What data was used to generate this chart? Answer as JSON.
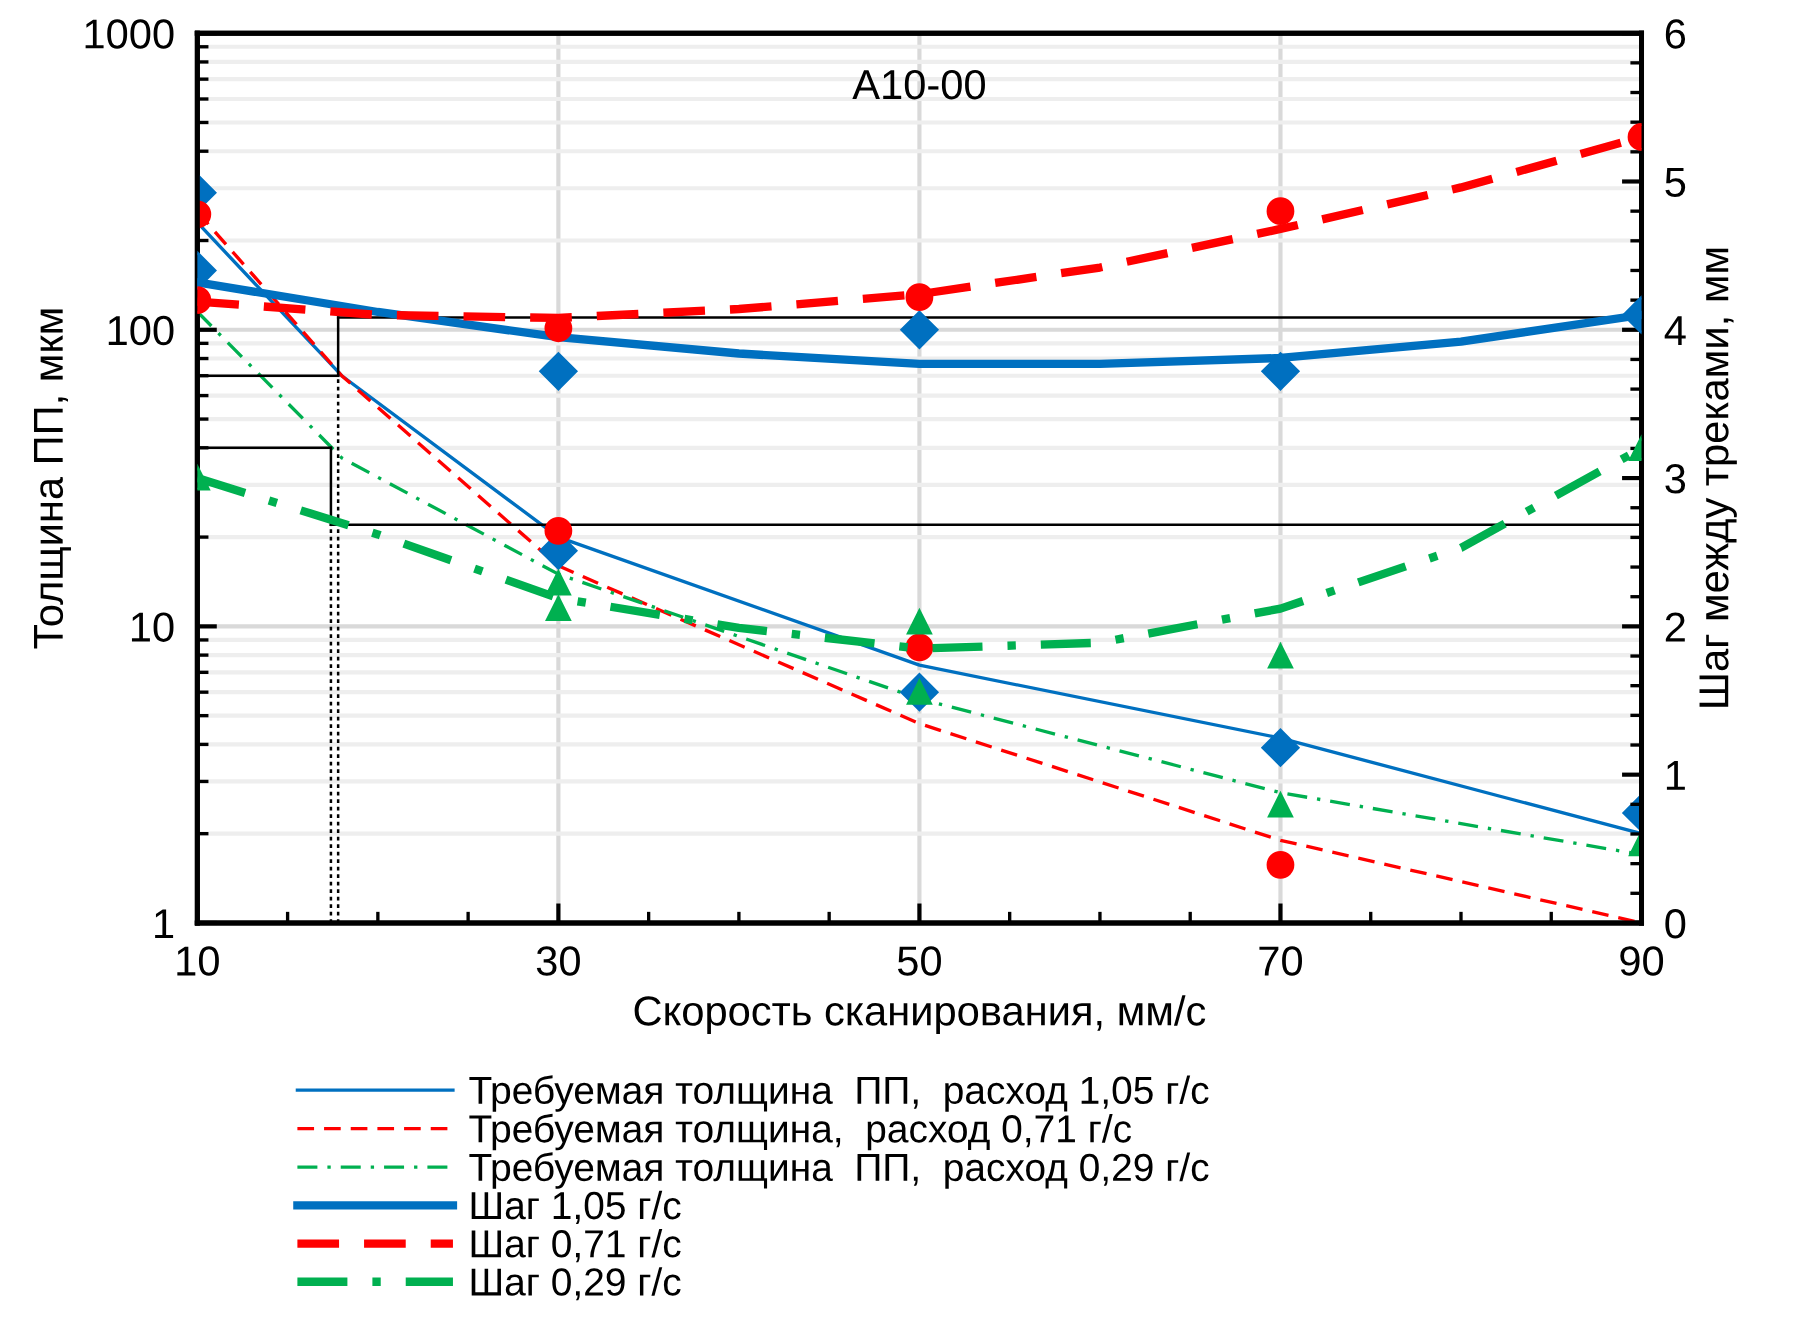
{
  "chart_data": {
    "type": "line",
    "title": "A10-00",
    "xlabel": "Скорость сканирования, мм/с",
    "ylabel": "Толщина ПП, мкм",
    "y2label": "Шаг между треками, мм",
    "log": "y",
    "xlim": [
      10,
      90
    ],
    "xticks": [
      10,
      30,
      50,
      70,
      90
    ],
    "ylim": [
      1,
      1000
    ],
    "yticks": [
      1,
      10,
      100,
      1000
    ],
    "y2lim": [
      0,
      6
    ],
    "y2ticks": [
      0,
      1,
      2,
      3,
      4,
      5,
      6
    ],
    "grid": true,
    "legend": "bottom",
    "series": [
      {
        "name": "Требуемая толщина  ПП,  расход 1,05 г/с",
        "color": "#0070c0",
        "line_style": "solid",
        "x": [
          10,
          18,
          30,
          50,
          70,
          90
        ],
        "values": [
          230,
          70,
          20,
          7.4,
          4.2,
          2.0
        ]
      },
      {
        "name": "Требуемая толщина,  расход 0,71 г/с",
        "color": "#ff0000",
        "line_style": "dashed",
        "x": [
          10,
          18,
          30,
          50,
          70,
          90
        ],
        "values": [
          250,
          70,
          16,
          4.7,
          1.9,
          1.0
        ]
      },
      {
        "name": "Требуемая толщина  ПП,  расход 0,29 г/с",
        "color": "#00b050",
        "line_style": "dashdot",
        "x": [
          10,
          18,
          30,
          50,
          70,
          90
        ],
        "values": [
          115,
          37,
          15,
          5.7,
          2.75,
          1.7
        ]
      },
      {
        "name": "Шаг 1,05 г/с",
        "axis": "y2",
        "color": "#0070c0",
        "line_style": "solid",
        "x": [
          10,
          20,
          30,
          40,
          50,
          60,
          70,
          80,
          90
        ],
        "values": [
          4.32,
          4.12,
          3.95,
          3.84,
          3.77,
          3.77,
          3.81,
          3.92,
          4.1
        ]
      },
      {
        "name": "Шаг 0,71 г/с",
        "axis": "y2",
        "color": "#ff0000",
        "line_style": "dashed",
        "x": [
          10,
          20,
          30,
          40,
          50,
          60,
          70,
          80,
          90
        ],
        "values": [
          4.19,
          4.1,
          4.08,
          4.14,
          4.24,
          4.42,
          4.68,
          4.96,
          5.3
        ]
      },
      {
        "name": "Шаг 0,29 г/с",
        "axis": "y2",
        "color": "#00b050",
        "line_style": "dashdot",
        "x": [
          10,
          20,
          30,
          40,
          50,
          60,
          70,
          80,
          90
        ],
        "values": [
          3.0,
          2.62,
          2.19,
          1.99,
          1.85,
          1.89,
          2.12,
          2.53,
          3.2
        ]
      },
      {
        "type": "scatter",
        "color": "#0070c0",
        "marker": "diamond",
        "x": [
          10,
          30,
          50,
          70,
          90
        ],
        "values": [
          290,
          18,
          6.0,
          3.9,
          2.35
        ]
      },
      {
        "type": "scatter",
        "color": "#ff0000",
        "marker": "circle",
        "x": [
          10,
          30,
          50,
          70
        ],
        "values": [
          245,
          21,
          8.5,
          1.57
        ]
      },
      {
        "type": "scatter",
        "color": "#00b050",
        "marker": "triangle",
        "x": [
          30,
          50,
          70,
          90
        ],
        "values": [
          14,
          6.0,
          2.5,
          1.85
        ]
      },
      {
        "type": "scatter",
        "axis": "y2",
        "color": "#0070c0",
        "marker": "diamond",
        "x": [
          10,
          30,
          50,
          70,
          90
        ],
        "values": [
          4.4,
          3.72,
          4.0,
          3.72,
          4.1
        ]
      },
      {
        "type": "scatter",
        "axis": "y2",
        "color": "#ff0000",
        "marker": "circle",
        "x": [
          10,
          30,
          50,
          70,
          90
        ],
        "values": [
          4.2,
          4.01,
          4.22,
          4.8,
          5.3
        ]
      },
      {
        "type": "scatter",
        "axis": "y2",
        "color": "#00b050",
        "marker": "triangle",
        "x": [
          10,
          30,
          50,
          70,
          90
        ],
        "values": [
          3.0,
          2.12,
          2.03,
          1.8,
          3.2
        ]
      },
      {
        "color": "#000000",
        "line_style": "solid",
        "x": [
          10,
          17.8
        ],
        "values": [
          70,
          70
        ]
      },
      {
        "color": "#000000",
        "line_style": "solid",
        "x": [
          17.8,
          17.8
        ],
        "values": [
          70,
          110
        ]
      },
      {
        "color": "#000000",
        "line_style": "solid",
        "x": [
          17.8,
          90
        ],
        "values": [
          110,
          110
        ]
      },
      {
        "color": "#000000",
        "line_style": "solid",
        "x": [
          10,
          17.4
        ],
        "values": [
          40,
          40
        ]
      },
      {
        "color": "#000000",
        "line_style": "solid",
        "x": [
          17.4,
          17.4
        ],
        "values": [
          40,
          22
        ]
      },
      {
        "color": "#000000",
        "line_style": "solid",
        "x": [
          17.4,
          90
        ],
        "values": [
          22,
          22
        ]
      },
      {
        "color": "#000000",
        "line_style": "dotted",
        "x": [
          17.4,
          17.4
        ],
        "values": [
          1,
          22
        ]
      },
      {
        "color": "#000000",
        "line_style": "dotted",
        "x": [
          17.8,
          17.8
        ],
        "values": [
          1,
          70
        ]
      }
    ]
  }
}
